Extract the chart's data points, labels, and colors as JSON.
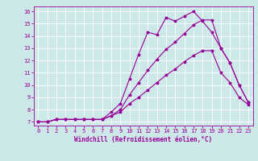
{
  "title": "",
  "xlabel": "Windchill (Refroidissement éolien,°C)",
  "bg_color": "#cce8e8",
  "line_color": "#990099",
  "grid_color": "#aacccc",
  "xlim": [
    -0.5,
    23.5
  ],
  "ylim": [
    6.7,
    16.4
  ],
  "xticks": [
    0,
    1,
    2,
    3,
    4,
    5,
    6,
    7,
    8,
    9,
    10,
    11,
    12,
    13,
    14,
    15,
    16,
    17,
    18,
    19,
    20,
    21,
    22,
    23
  ],
  "yticks": [
    7,
    8,
    9,
    10,
    11,
    12,
    13,
    14,
    15,
    16
  ],
  "series": [
    {
      "x": [
        0,
        1,
        2,
        3,
        4,
        5,
        6,
        7,
        8,
        9,
        10,
        11,
        12,
        13,
        14,
        15,
        16,
        17,
        18,
        19,
        20,
        21,
        22,
        23
      ],
      "y": [
        7.0,
        7.0,
        7.2,
        7.2,
        7.2,
        7.2,
        7.2,
        7.2,
        7.8,
        8.5,
        10.5,
        12.5,
        14.3,
        14.1,
        15.5,
        15.2,
        15.6,
        16.0,
        15.2,
        14.3,
        13.0,
        11.8,
        10.0,
        8.6
      ]
    },
    {
      "x": [
        0,
        1,
        2,
        3,
        4,
        5,
        6,
        7,
        8,
        9,
        10,
        11,
        12,
        13,
        14,
        15,
        16,
        17,
        18,
        19,
        20,
        21,
        22,
        23
      ],
      "y": [
        7.0,
        7.0,
        7.2,
        7.2,
        7.2,
        7.2,
        7.2,
        7.2,
        7.5,
        8.0,
        9.2,
        10.2,
        11.2,
        12.1,
        12.9,
        13.5,
        14.2,
        14.9,
        15.3,
        15.3,
        13.0,
        11.8,
        10.0,
        8.6
      ]
    },
    {
      "x": [
        0,
        1,
        2,
        3,
        4,
        5,
        6,
        7,
        8,
        9,
        10,
        11,
        12,
        13,
        14,
        15,
        16,
        17,
        18,
        19,
        20,
        21,
        22,
        23
      ],
      "y": [
        7.0,
        7.0,
        7.2,
        7.2,
        7.2,
        7.2,
        7.2,
        7.2,
        7.5,
        7.8,
        8.5,
        9.0,
        9.6,
        10.2,
        10.8,
        11.3,
        11.9,
        12.4,
        12.8,
        12.8,
        11.0,
        10.2,
        9.0,
        8.4
      ]
    }
  ]
}
